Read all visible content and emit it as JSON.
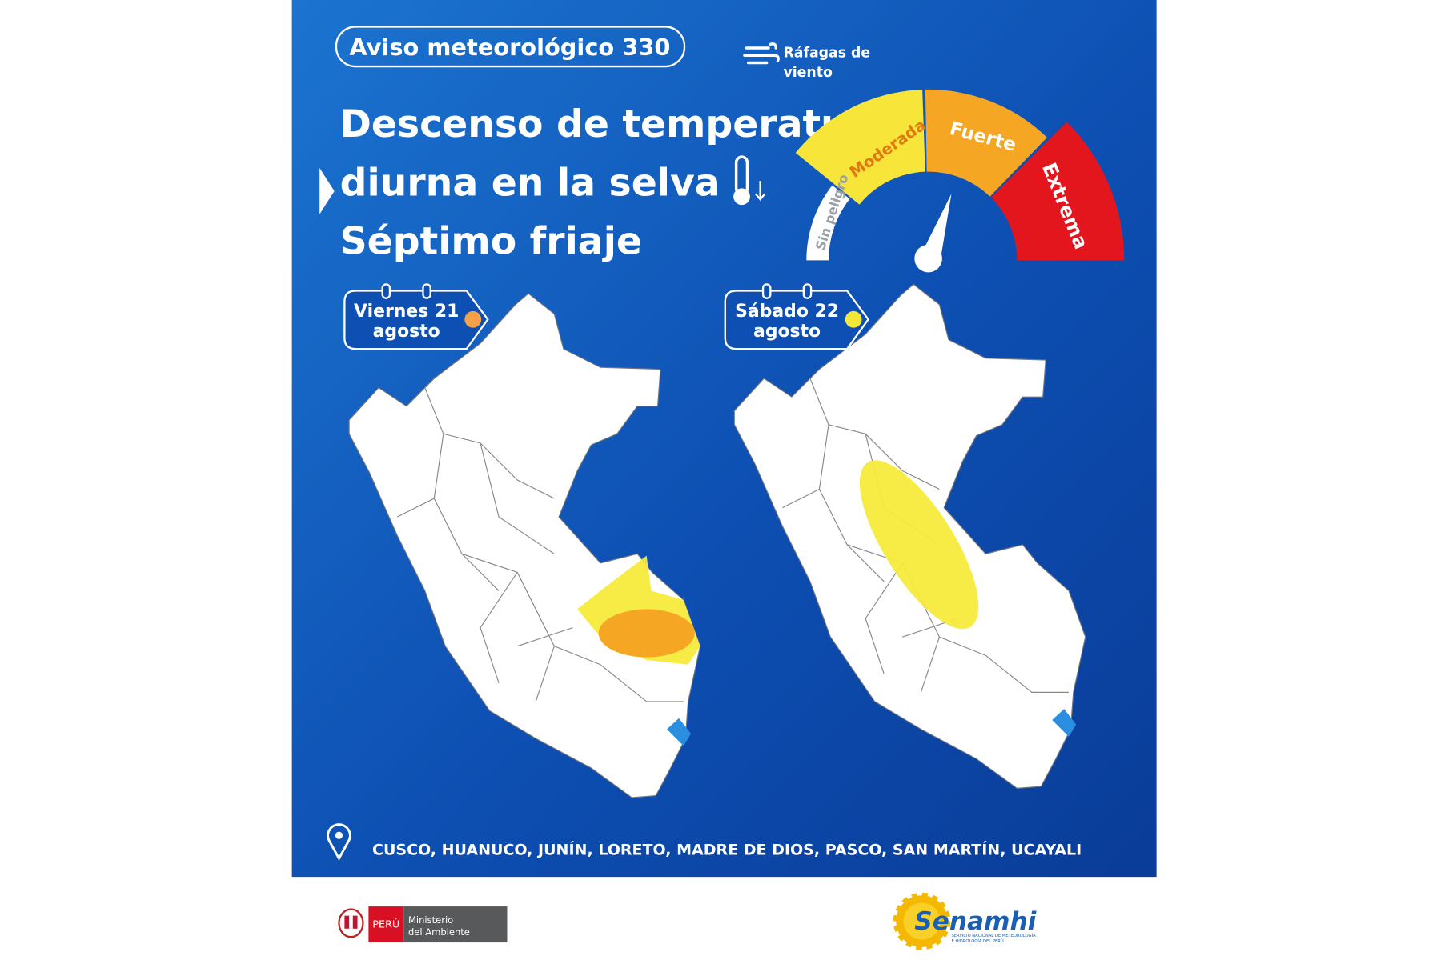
{
  "header": {
    "title": "Aviso meteorológico 330",
    "hazard": [
      "Ráfagas de",
      "viento"
    ]
  },
  "headline": [
    "Descenso de temperatura",
    "diurna en la selva",
    "Séptimo friaje"
  ],
  "gauge": {
    "levels": [
      "Sin peligro",
      "Moderada",
      "Fuerte",
      "Extrema"
    ]
  },
  "maps": [
    {
      "day": "Viernes 21",
      "month": "agosto"
    },
    {
      "day": "Sábado 22",
      "month": "agosto"
    }
  ],
  "regions": "CUSCO, HUANUCO, JUNÍN, LORETO, MADRE DE DIOS, PASCO, SAN MARTÍN, UCAYALI",
  "footer": {
    "country": "PERÚ",
    "ministry": [
      "Ministerio",
      "del Ambiente"
    ],
    "agency": "Senamhi",
    "agency_full": [
      "SERVICIO NACIONAL DE METEOROLOGÍA",
      "E HIDROLOGÍA DEL PERÚ"
    ]
  }
}
